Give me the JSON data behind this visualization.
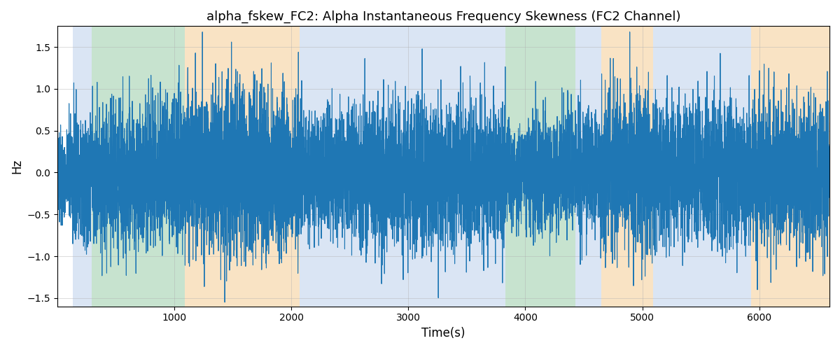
{
  "title": "alpha_fskew_FC2: Alpha Instantaneous Frequency Skewness (FC2 Channel)",
  "xlabel": "Time(s)",
  "ylabel": "Hz",
  "xlim": [
    0,
    6600
  ],
  "ylim": [
    -1.6,
    1.75
  ],
  "line_color": "#1f77b4",
  "line_width": 0.8,
  "bg_color": "#ffffff",
  "grid_color": "#b0b0b0",
  "grid_alpha": 0.6,
  "regions": [
    {
      "xstart": 130,
      "xend": 295,
      "color": "#aec6e8",
      "alpha": 0.45
    },
    {
      "xstart": 295,
      "xend": 1090,
      "color": "#90c9a0",
      "alpha": 0.5
    },
    {
      "xstart": 1090,
      "xend": 2070,
      "color": "#f5c98a",
      "alpha": 0.5
    },
    {
      "xstart": 2070,
      "xend": 3830,
      "color": "#aec6e8",
      "alpha": 0.45
    },
    {
      "xstart": 3830,
      "xend": 4060,
      "color": "#90c9a0",
      "alpha": 0.5
    },
    {
      "xstart": 4060,
      "xend": 4430,
      "color": "#90c9a0",
      "alpha": 0.5
    },
    {
      "xstart": 4430,
      "xend": 4650,
      "color": "#aec6e8",
      "alpha": 0.45
    },
    {
      "xstart": 4650,
      "xend": 5090,
      "color": "#f5c98a",
      "alpha": 0.5
    },
    {
      "xstart": 5090,
      "xend": 5590,
      "color": "#aec6e8",
      "alpha": 0.45
    },
    {
      "xstart": 5590,
      "xend": 5930,
      "color": "#aec6e8",
      "alpha": 0.45
    },
    {
      "xstart": 5930,
      "xend": 6600,
      "color": "#f5c98a",
      "alpha": 0.5
    }
  ],
  "xticks": [
    1000,
    2000,
    3000,
    4000,
    5000,
    6000
  ],
  "yticks": [
    -1.5,
    -1.0,
    -0.5,
    0.0,
    0.5,
    1.0,
    1.5
  ]
}
